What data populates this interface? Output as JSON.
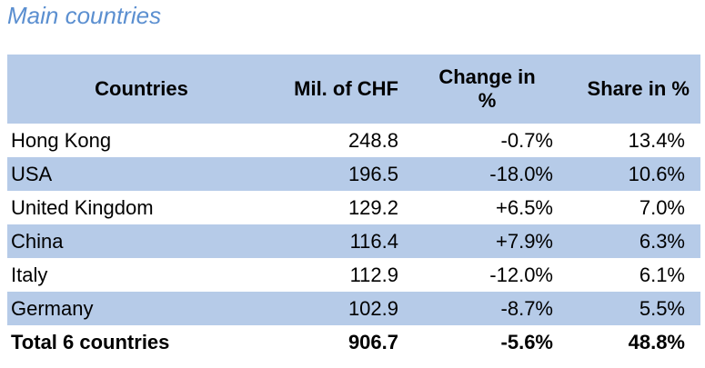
{
  "title": "Main countries",
  "table": {
    "header": [
      "Countries",
      "Mil. of CHF",
      "Change in %",
      "Share in %"
    ],
    "rows": [
      [
        "Hong Kong",
        "248.8",
        "-0.7%",
        "13.4%"
      ],
      [
        "USA",
        "196.5",
        "-18.0%",
        "10.6%"
      ],
      [
        "United Kingdom",
        "129.2",
        "+6.5%",
        "7.0%"
      ],
      [
        "China",
        "116.4",
        "+7.9%",
        "6.3%"
      ],
      [
        "Italy",
        "112.9",
        "-12.0%",
        "6.1%"
      ],
      [
        "Germany",
        "102.9",
        "-8.7%",
        "5.5%"
      ]
    ],
    "total": [
      "Total 6 countries",
      "906.7",
      "-5.6%",
      "48.8%"
    ]
  }
}
